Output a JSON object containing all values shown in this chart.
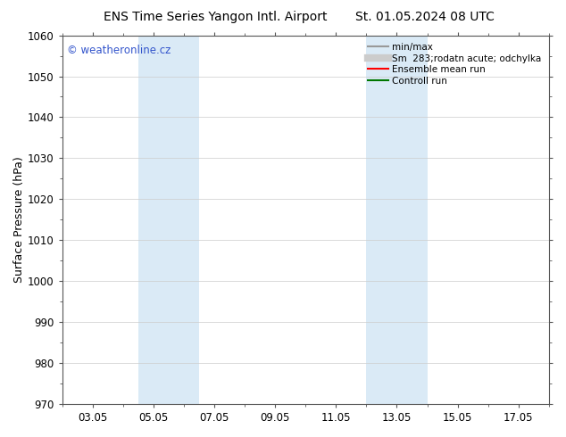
{
  "title_left": "ENS Time Series Yangon Intl. Airport",
  "title_right": "St. 01.05.2024 08 UTC",
  "ylabel": "Surface Pressure (hPa)",
  "ylim": [
    970,
    1060
  ],
  "yticks": [
    970,
    980,
    990,
    1000,
    1010,
    1020,
    1030,
    1040,
    1050,
    1060
  ],
  "xtick_labels": [
    "03.05",
    "05.05",
    "07.05",
    "09.05",
    "11.05",
    "13.05",
    "15.05",
    "17.05"
  ],
  "xtick_positions": [
    2,
    4,
    6,
    8,
    10,
    12,
    14,
    16
  ],
  "xlim": [
    1,
    17
  ],
  "shaded_regions": [
    {
      "xmin": 3.5,
      "xmax": 5.5
    },
    {
      "xmin": 11.0,
      "xmax": 13.0
    }
  ],
  "shaded_color": "#daeaf6",
  "grid_color": "#cccccc",
  "background_color": "#ffffff",
  "watermark_text": "© weatheronline.cz",
  "watermark_color": "#3355cc",
  "legend_items": [
    {
      "label": "min/max",
      "color": "#999999",
      "lw": 1.5,
      "style": "solid"
    },
    {
      "label": "Sm  283;rodatn acute; odchylka",
      "color": "#cccccc",
      "lw": 6,
      "style": "solid"
    },
    {
      "label": "Ensemble mean run",
      "color": "#ff0000",
      "lw": 1.5,
      "style": "solid"
    },
    {
      "label": "Controll run",
      "color": "#007700",
      "lw": 1.5,
      "style": "solid"
    }
  ],
  "title_fontsize": 10,
  "tick_fontsize": 8.5,
  "ylabel_fontsize": 9,
  "legend_fontsize": 7.5
}
